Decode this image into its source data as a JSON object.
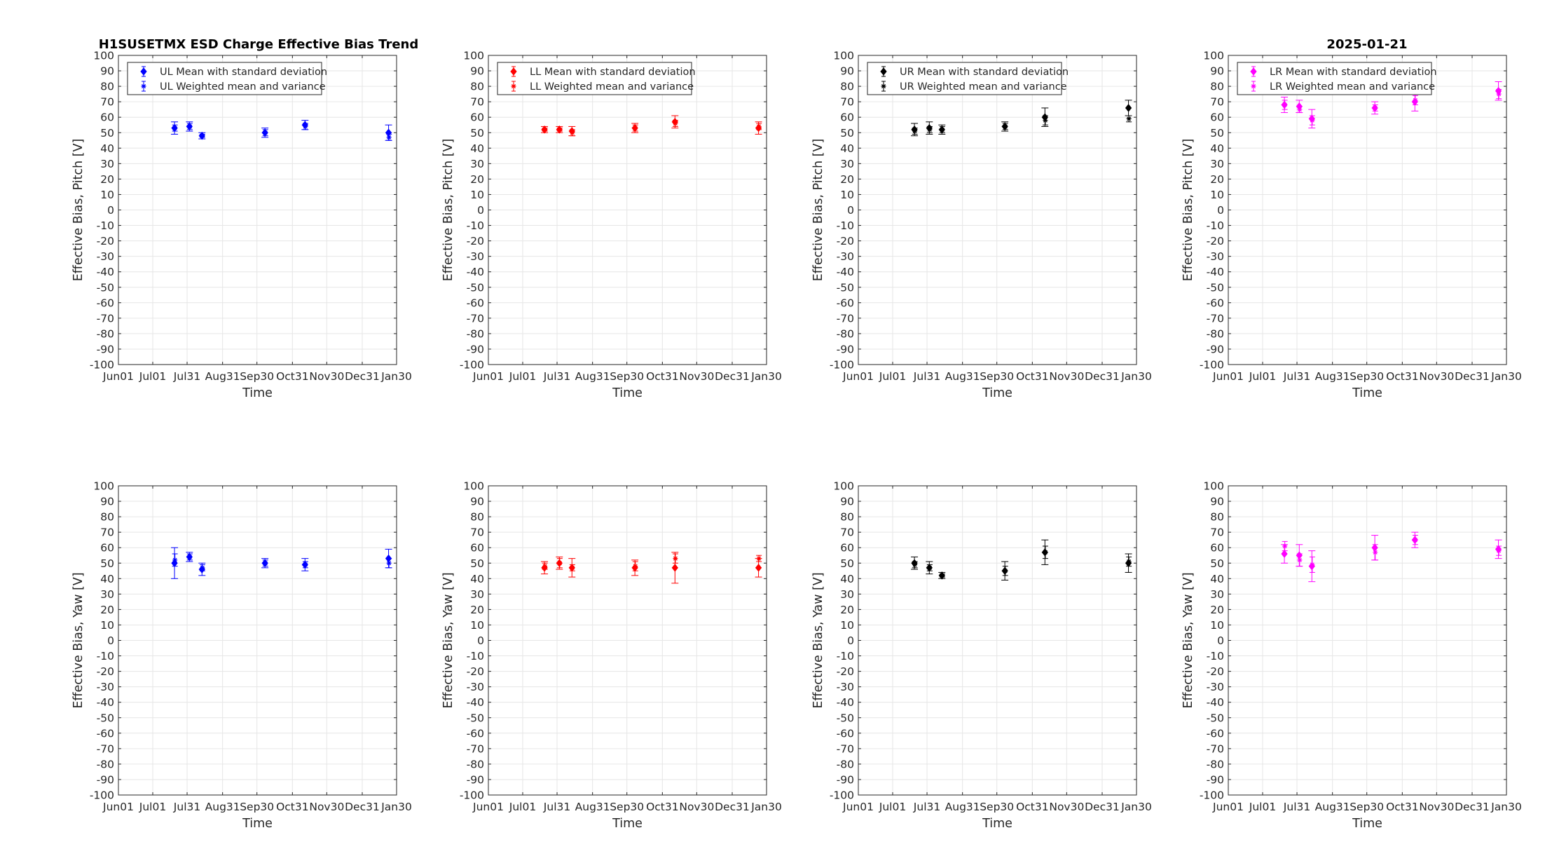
{
  "figure": {
    "title_left": "H1SUSETMX ESD Charge Effective Bias Trend",
    "title_right": "2025-01-21"
  },
  "chart_data": [
    {
      "type": "scatter",
      "quadrant": "UL",
      "row": "pitch",
      "color": "#0000ff",
      "xlabel": "Time",
      "ylabel": "Effective Bias, Pitch [V]",
      "ylim": [
        -100,
        100
      ],
      "xticks": [
        "Jun01",
        "Jul01",
        "Jul31",
        "Aug31",
        "Sep30",
        "Oct31",
        "Nov30",
        "Dec31",
        "Jan30"
      ],
      "yticks": [
        100,
        90,
        80,
        70,
        60,
        50,
        40,
        30,
        20,
        10,
        0,
        -10,
        -20,
        -30,
        -40,
        -50,
        -60,
        -70,
        -80,
        -90,
        -100
      ],
      "grid": true,
      "legend_position": "top-left",
      "legend": [
        "UL Mean with standard deviation",
        "UL Weighted mean and variance"
      ],
      "series": [
        {
          "name": "UL Mean with standard deviation",
          "x": [
            "2024-07-20",
            "2024-08-02",
            "2024-08-13",
            "2024-10-07",
            "2024-11-11",
            "2025-01-23"
          ],
          "y": [
            53,
            54,
            48,
            50,
            55,
            50
          ],
          "err": [
            4,
            3,
            2,
            3,
            3,
            5
          ]
        },
        {
          "name": "UL Weighted mean and variance",
          "x": [
            "2024-07-20",
            "2024-08-02",
            "2024-08-13",
            "2024-10-07",
            "2024-11-11",
            "2025-01-23"
          ],
          "y": [
            53,
            54,
            48,
            50,
            54,
            47
          ],
          "err": [
            2,
            2,
            1,
            2,
            2,
            2
          ]
        }
      ]
    },
    {
      "type": "scatter",
      "quadrant": "LL",
      "row": "pitch",
      "color": "#ff0000",
      "xlabel": "Time",
      "ylabel": "Effective Bias, Pitch [V]",
      "ylim": [
        -100,
        100
      ],
      "xticks": [
        "Jun01",
        "Jul01",
        "Jul31",
        "Aug31",
        "Sep30",
        "Oct31",
        "Nov30",
        "Dec31",
        "Jan30"
      ],
      "yticks": [
        100,
        90,
        80,
        70,
        60,
        50,
        40,
        30,
        20,
        10,
        0,
        -10,
        -20,
        -30,
        -40,
        -50,
        -60,
        -70,
        -80,
        -90,
        -100
      ],
      "grid": true,
      "legend_position": "top-left",
      "legend": [
        "LL Mean with standard deviation",
        "LL Weighted mean and variance"
      ],
      "series": [
        {
          "name": "LL Mean with standard deviation",
          "x": [
            "2024-07-20",
            "2024-08-02",
            "2024-08-13",
            "2024-10-07",
            "2024-11-11",
            "2025-01-23"
          ],
          "y": [
            52,
            52,
            51,
            53,
            57,
            53
          ],
          "err": [
            2,
            2,
            3,
            3,
            4,
            4
          ]
        },
        {
          "name": "LL Weighted mean and variance",
          "x": [
            "2024-07-20",
            "2024-08-02",
            "2024-08-13",
            "2024-10-07",
            "2024-11-11",
            "2025-01-23"
          ],
          "y": [
            52,
            52,
            50,
            53,
            56,
            54
          ],
          "err": [
            1,
            1,
            2,
            2,
            2,
            2
          ]
        }
      ]
    },
    {
      "type": "scatter",
      "quadrant": "UR",
      "row": "pitch",
      "color": "#000000",
      "xlabel": "Time",
      "ylabel": "Effective Bias, Pitch [V]",
      "ylim": [
        -100,
        100
      ],
      "xticks": [
        "Jun01",
        "Jul01",
        "Jul31",
        "Aug31",
        "Sep30",
        "Oct31",
        "Nov30",
        "Dec31",
        "Jan30"
      ],
      "yticks": [
        100,
        90,
        80,
        70,
        60,
        50,
        40,
        30,
        20,
        10,
        0,
        -10,
        -20,
        -30,
        -40,
        -50,
        -60,
        -70,
        -80,
        -90,
        -100
      ],
      "grid": true,
      "legend_position": "top-left",
      "legend": [
        "UR Mean with standard deviation",
        "UR Weighted mean and variance"
      ],
      "series": [
        {
          "name": "UR Mean with standard deviation",
          "x": [
            "2024-07-20",
            "2024-08-02",
            "2024-08-13",
            "2024-10-07",
            "2024-11-11",
            "2025-01-23"
          ],
          "y": [
            52,
            53,
            52,
            54,
            60,
            66
          ],
          "err": [
            4,
            4,
            3,
            3,
            6,
            5
          ]
        },
        {
          "name": "UR Weighted mean and variance",
          "x": [
            "2024-07-20",
            "2024-08-02",
            "2024-08-13",
            "2024-10-07",
            "2024-11-11",
            "2025-01-23"
          ],
          "y": [
            51,
            52,
            52,
            54,
            58,
            59
          ],
          "err": [
            2,
            2,
            2,
            2,
            3,
            2
          ]
        }
      ]
    },
    {
      "type": "scatter",
      "quadrant": "LR",
      "row": "pitch",
      "color": "#ff00ff",
      "xlabel": "Time",
      "ylabel": "Effective Bias, Pitch [V]",
      "ylim": [
        -100,
        100
      ],
      "xticks": [
        "Jun01",
        "Jul01",
        "Jul31",
        "Aug31",
        "Sep30",
        "Oct31",
        "Nov30",
        "Dec31",
        "Jan30"
      ],
      "yticks": [
        100,
        90,
        80,
        70,
        60,
        50,
        40,
        30,
        20,
        10,
        0,
        -10,
        -20,
        -30,
        -40,
        -50,
        -60,
        -70,
        -80,
        -90,
        -100
      ],
      "grid": true,
      "legend_position": "top-left",
      "legend": [
        "LR Mean with standard deviation",
        "LR Weighted mean and variance"
      ],
      "series": [
        {
          "name": "LR Mean with standard deviation",
          "x": [
            "2024-07-20",
            "2024-08-02",
            "2024-08-13",
            "2024-10-07",
            "2024-11-11",
            "2025-01-23"
          ],
          "y": [
            68,
            67,
            59,
            66,
            70,
            77
          ],
          "err": [
            5,
            4,
            6,
            4,
            6,
            6
          ]
        },
        {
          "name": "LR Weighted mean and variance",
          "x": [
            "2024-07-20",
            "2024-08-02",
            "2024-08-13",
            "2024-10-07",
            "2024-11-11",
            "2025-01-23"
          ],
          "y": [
            68,
            65,
            58,
            66,
            71,
            75
          ],
          "err": [
            3,
            2,
            3,
            2,
            3,
            3
          ]
        }
      ]
    },
    {
      "type": "scatter",
      "quadrant": "UL",
      "row": "yaw",
      "color": "#0000ff",
      "xlabel": "Time",
      "ylabel": "Effective Bias, Yaw [V]",
      "ylim": [
        -100,
        100
      ],
      "xticks": [
        "Jun01",
        "Jul01",
        "Jul31",
        "Aug31",
        "Sep30",
        "Oct31",
        "Nov30",
        "Dec31",
        "Jan30"
      ],
      "yticks": [
        100,
        90,
        80,
        70,
        60,
        50,
        40,
        30,
        20,
        10,
        0,
        -10,
        -20,
        -30,
        -40,
        -50,
        -60,
        -70,
        -80,
        -90,
        -100
      ],
      "grid": true,
      "series": [
        {
          "name": "UL Mean with standard deviation",
          "x": [
            "2024-07-20",
            "2024-08-02",
            "2024-08-13",
            "2024-10-07",
            "2024-11-11",
            "2025-01-23"
          ],
          "y": [
            50,
            54,
            46,
            50,
            49,
            53
          ],
          "err": [
            10,
            3,
            4,
            3,
            4,
            6
          ]
        },
        {
          "name": "UL Weighted mean and variance",
          "x": [
            "2024-07-20",
            "2024-08-02",
            "2024-08-13",
            "2024-10-07",
            "2024-11-11",
            "2025-01-23"
          ],
          "y": [
            52,
            54,
            47,
            50,
            49,
            50
          ],
          "err": [
            4,
            2,
            2,
            2,
            2,
            3
          ]
        }
      ]
    },
    {
      "type": "scatter",
      "quadrant": "LL",
      "row": "yaw",
      "color": "#ff0000",
      "xlabel": "Time",
      "ylabel": "Effective Bias, Yaw [V]",
      "ylim": [
        -100,
        100
      ],
      "xticks": [
        "Jun01",
        "Jul01",
        "Jul31",
        "Aug31",
        "Sep30",
        "Oct31",
        "Nov30",
        "Dec31",
        "Jan30"
      ],
      "yticks": [
        100,
        90,
        80,
        70,
        60,
        50,
        40,
        30,
        20,
        10,
        0,
        -10,
        -20,
        -30,
        -40,
        -50,
        -60,
        -70,
        -80,
        -90,
        -100
      ],
      "grid": true,
      "series": [
        {
          "name": "LL Mean with standard deviation",
          "x": [
            "2024-07-20",
            "2024-08-02",
            "2024-08-13",
            "2024-10-07",
            "2024-11-11",
            "2025-01-23"
          ],
          "y": [
            47,
            50,
            47,
            47,
            47,
            47
          ],
          "err": [
            4,
            4,
            6,
            5,
            10,
            6
          ]
        },
        {
          "name": "LL Weighted mean and variance",
          "x": [
            "2024-07-20",
            "2024-08-02",
            "2024-08-13",
            "2024-10-07",
            "2024-11-11",
            "2025-01-23"
          ],
          "y": [
            48,
            50,
            47,
            48,
            53,
            53
          ],
          "err": [
            2,
            3,
            2,
            3,
            3,
            2
          ]
        }
      ]
    },
    {
      "type": "scatter",
      "quadrant": "UR",
      "row": "yaw",
      "color": "#000000",
      "xlabel": "Time",
      "ylabel": "Effective Bias, Yaw [V]",
      "ylim": [
        -100,
        100
      ],
      "xticks": [
        "Jun01",
        "Jul01",
        "Jul31",
        "Aug31",
        "Sep30",
        "Oct31",
        "Nov30",
        "Dec31",
        "Jan30"
      ],
      "yticks": [
        100,
        90,
        80,
        70,
        60,
        50,
        40,
        30,
        20,
        10,
        0,
        -10,
        -20,
        -30,
        -40,
        -50,
        -60,
        -70,
        -80,
        -90,
        -100
      ],
      "grid": true,
      "series": [
        {
          "name": "UR Mean with standard deviation",
          "x": [
            "2024-07-20",
            "2024-08-02",
            "2024-08-13",
            "2024-10-07",
            "2024-11-11",
            "2025-01-23"
          ],
          "y": [
            50,
            47,
            42,
            45,
            57,
            50
          ],
          "err": [
            4,
            4,
            2,
            6,
            8,
            6
          ]
        },
        {
          "name": "UR Weighted mean and variance",
          "x": [
            "2024-07-20",
            "2024-08-02",
            "2024-08-13",
            "2024-10-07",
            "2024-11-11",
            "2025-01-23"
          ],
          "y": [
            49,
            47,
            42,
            45,
            57,
            51
          ],
          "err": [
            2,
            2,
            1,
            3,
            4,
            3
          ]
        }
      ]
    },
    {
      "type": "scatter",
      "quadrant": "LR",
      "row": "yaw",
      "color": "#ff00ff",
      "xlabel": "Time",
      "ylabel": "Effective Bias, Yaw [V]",
      "ylim": [
        -100,
        100
      ],
      "xticks": [
        "Jun01",
        "Jul01",
        "Jul31",
        "Aug31",
        "Sep30",
        "Oct31",
        "Nov30",
        "Dec31",
        "Jan30"
      ],
      "yticks": [
        100,
        90,
        80,
        70,
        60,
        50,
        40,
        30,
        20,
        10,
        0,
        -10,
        -20,
        -30,
        -40,
        -50,
        -60,
        -70,
        -80,
        -90,
        -100
      ],
      "grid": true,
      "series": [
        {
          "name": "LR Mean with standard deviation",
          "x": [
            "2024-07-20",
            "2024-08-02",
            "2024-08-13",
            "2024-10-07",
            "2024-11-11",
            "2025-01-23"
          ],
          "y": [
            56,
            55,
            48,
            60,
            65,
            59
          ],
          "err": [
            6,
            7,
            10,
            8,
            5,
            6
          ]
        },
        {
          "name": "LR Weighted mean and variance",
          "x": [
            "2024-07-20",
            "2024-08-02",
            "2024-08-13",
            "2024-10-07",
            "2024-11-11",
            "2025-01-23"
          ],
          "y": [
            61,
            52,
            49,
            57,
            65,
            58
          ],
          "err": [
            3,
            4,
            5,
            5,
            3,
            3
          ]
        }
      ]
    }
  ]
}
